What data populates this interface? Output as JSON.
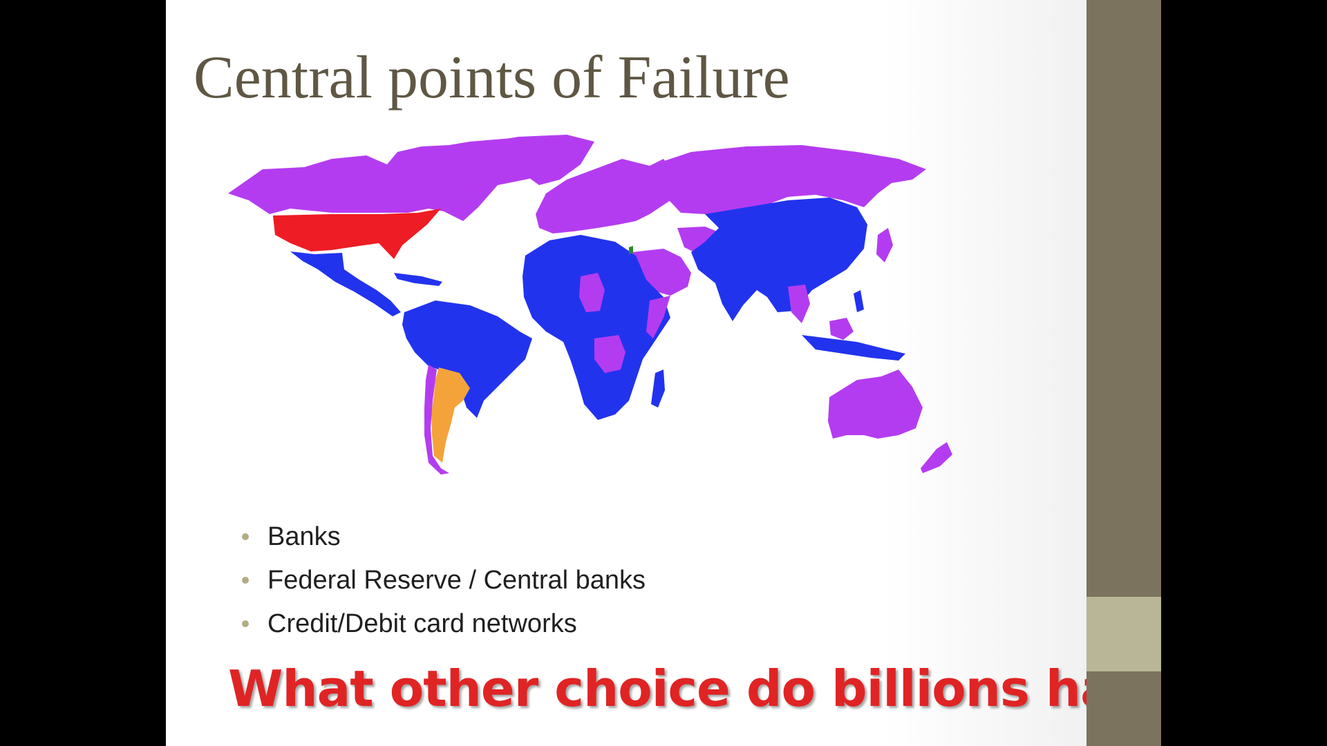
{
  "slide": {
    "title": "Central points of Failure",
    "bullets": [
      "Banks",
      "Federal Reserve / Central banks",
      "Credit/Debit card networks"
    ],
    "callout": "What other choice do billions have?"
  },
  "map": {
    "colors": {
      "purple": "#b43cf0",
      "blue": "#2233ee",
      "red": "#ee1c24",
      "orange": "#f4a33a",
      "green": "#2a8a2a"
    }
  },
  "theme": {
    "title_color": "#5f5744",
    "side_band": "#7b735d",
    "side_accent": "#b9b697",
    "callout_color": "#e02424",
    "bullet_color": "#b3ad87"
  }
}
